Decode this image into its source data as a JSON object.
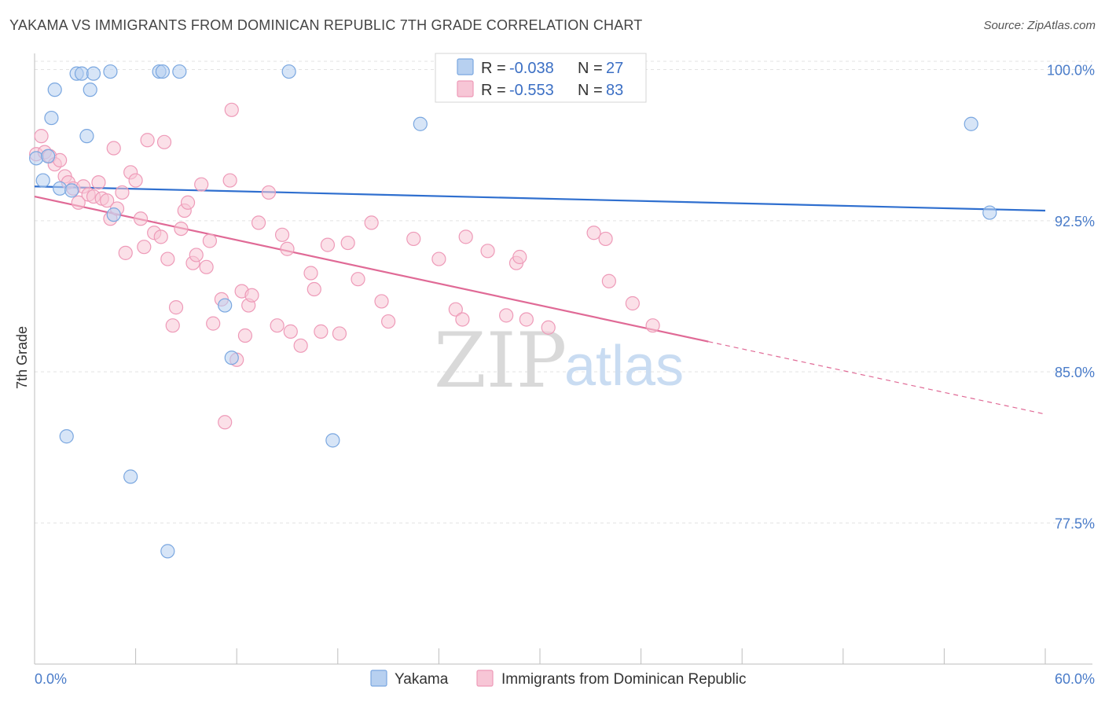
{
  "header": {
    "title": "YAKAMA VS IMMIGRANTS FROM DOMINICAN REPUBLIC 7TH GRADE CORRELATION CHART",
    "source": "Source: ZipAtlas.com"
  },
  "watermark": {
    "zip": "ZIP",
    "atlas": "atlas"
  },
  "colors": {
    "blue": "#7aa7e0",
    "blue_fill": "#b7d0f0",
    "blue_line": "#2f6fcf",
    "pink": "#ee9ab8",
    "pink_fill": "#f7c6d6",
    "pink_line": "#e06a96",
    "grid": "#e3e3e3",
    "tick_text": "#4a7cc9"
  },
  "legend": {
    "rows": [
      {
        "r_label": "R = ",
        "r_value": "-0.038",
        "n_label": "N = ",
        "n_value": "27"
      },
      {
        "r_label": "R = ",
        "r_value": "-0.553",
        "n_label": "N = ",
        "n_value": "83"
      }
    ]
  },
  "chart_data": {
    "type": "scatter",
    "title": "YAKAMA VS IMMIGRANTS FROM DOMINICAN REPUBLIC 7TH GRADE CORRELATION CHART",
    "xlabel": "",
    "ylabel": "7th Grade",
    "xlim": [
      0,
      60
    ],
    "ylim": [
      70.5,
      100.8
    ],
    "x_tick_labels": [
      "0.0%",
      "60.0%"
    ],
    "y_ticks": [
      77.5,
      85.0,
      92.5,
      100.0
    ],
    "y_tick_labels": [
      "77.5%",
      "85.0%",
      "92.5%",
      "100.0%"
    ],
    "grid": true,
    "legend_position": "bottom",
    "series": [
      {
        "name": "Yakama",
        "color": "#7aa7e0",
        "points": [
          [
            0.1,
            95.6
          ],
          [
            0.5,
            94.5
          ],
          [
            0.8,
            95.7
          ],
          [
            1.0,
            97.6
          ],
          [
            1.2,
            99.0
          ],
          [
            1.5,
            94.1
          ],
          [
            1.9,
            81.8
          ],
          [
            2.2,
            94.0
          ],
          [
            2.5,
            99.8
          ],
          [
            2.8,
            99.8
          ],
          [
            3.1,
            96.7
          ],
          [
            3.3,
            99.0
          ],
          [
            3.5,
            99.8
          ],
          [
            4.5,
            99.9
          ],
          [
            4.7,
            92.8
          ],
          [
            5.7,
            79.8
          ],
          [
            7.4,
            99.9
          ],
          [
            7.6,
            99.9
          ],
          [
            7.9,
            76.1
          ],
          [
            8.6,
            99.9
          ],
          [
            11.3,
            88.3
          ],
          [
            11.7,
            85.7
          ],
          [
            15.1,
            99.9
          ],
          [
            17.7,
            81.6
          ],
          [
            22.9,
            97.3
          ],
          [
            55.6,
            97.3
          ],
          [
            56.7,
            92.9
          ]
        ],
        "trend": {
          "x0": 0,
          "y0": 94.2,
          "x1": 60,
          "y1": 93.0
        }
      },
      {
        "name": "Immigrants from Dominican Republic",
        "color": "#ee9ab8",
        "points": [
          [
            0.1,
            95.8
          ],
          [
            0.4,
            96.7
          ],
          [
            0.6,
            95.9
          ],
          [
            0.9,
            95.7
          ],
          [
            1.2,
            95.3
          ],
          [
            1.5,
            95.5
          ],
          [
            1.8,
            94.7
          ],
          [
            2.0,
            94.4
          ],
          [
            2.3,
            94.1
          ],
          [
            2.6,
            93.4
          ],
          [
            2.9,
            94.2
          ],
          [
            3.2,
            93.8
          ],
          [
            3.5,
            93.7
          ],
          [
            3.8,
            94.4
          ],
          [
            4.0,
            93.6
          ],
          [
            4.3,
            93.5
          ],
          [
            4.5,
            92.6
          ],
          [
            4.7,
            96.1
          ],
          [
            4.9,
            93.1
          ],
          [
            5.2,
            93.9
          ],
          [
            5.4,
            90.9
          ],
          [
            5.7,
            94.9
          ],
          [
            6.0,
            94.5
          ],
          [
            6.3,
            92.6
          ],
          [
            6.5,
            91.2
          ],
          [
            6.7,
            96.5
          ],
          [
            7.1,
            91.9
          ],
          [
            7.5,
            91.7
          ],
          [
            7.7,
            96.4
          ],
          [
            7.9,
            90.6
          ],
          [
            8.2,
            87.3
          ],
          [
            8.4,
            88.2
          ],
          [
            8.7,
            92.1
          ],
          [
            8.9,
            93.0
          ],
          [
            9.1,
            93.4
          ],
          [
            9.4,
            90.4
          ],
          [
            9.6,
            90.8
          ],
          [
            9.9,
            94.3
          ],
          [
            10.2,
            90.2
          ],
          [
            10.4,
            91.5
          ],
          [
            10.6,
            87.4
          ],
          [
            11.1,
            88.6
          ],
          [
            11.3,
            82.5
          ],
          [
            11.6,
            94.5
          ],
          [
            11.7,
            98.0
          ],
          [
            12.0,
            85.6
          ],
          [
            12.3,
            89.0
          ],
          [
            12.5,
            86.8
          ],
          [
            12.7,
            88.3
          ],
          [
            12.9,
            88.8
          ],
          [
            13.3,
            92.4
          ],
          [
            13.9,
            93.9
          ],
          [
            14.4,
            87.3
          ],
          [
            14.7,
            91.8
          ],
          [
            15.0,
            91.1
          ],
          [
            15.2,
            87.0
          ],
          [
            15.8,
            86.3
          ],
          [
            16.4,
            89.9
          ],
          [
            16.6,
            89.1
          ],
          [
            17.0,
            87.0
          ],
          [
            17.4,
            91.3
          ],
          [
            18.1,
            86.9
          ],
          [
            18.6,
            91.4
          ],
          [
            19.2,
            89.6
          ],
          [
            20.0,
            92.4
          ],
          [
            20.6,
            88.5
          ],
          [
            21.0,
            87.5
          ],
          [
            22.5,
            91.6
          ],
          [
            24.0,
            90.6
          ],
          [
            25.0,
            88.1
          ],
          [
            25.4,
            87.6
          ],
          [
            25.6,
            91.7
          ],
          [
            26.9,
            91.0
          ],
          [
            28.0,
            87.8
          ],
          [
            28.6,
            90.4
          ],
          [
            28.8,
            90.7
          ],
          [
            29.2,
            87.6
          ],
          [
            30.5,
            87.2
          ],
          [
            33.2,
            91.9
          ],
          [
            33.9,
            91.6
          ],
          [
            34.1,
            89.5
          ],
          [
            35.5,
            88.4
          ],
          [
            36.7,
            87.3
          ]
        ],
        "trend": {
          "x0": 0,
          "y0": 93.7,
          "x1": 40,
          "y1": 86.5
        },
        "trend_extension": {
          "x0": 40,
          "y0": 86.5,
          "x1": 60,
          "y1": 82.9
        }
      }
    ]
  }
}
